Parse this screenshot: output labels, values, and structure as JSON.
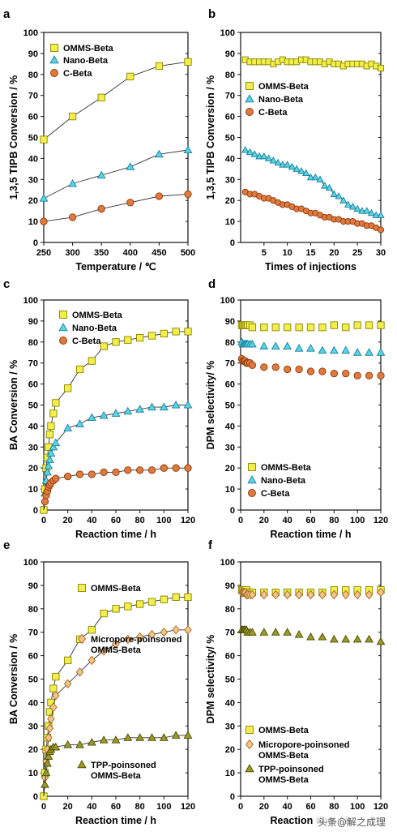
{
  "watermark": "头条@解之成理",
  "colors": {
    "ommS": "#f2ee4a",
    "ommSEdge": "#8a8600",
    "nano": "#58d4e6",
    "nanoEdge": "#1a7f9a",
    "cbeta": "#e07a3c",
    "cbetaEdge": "#8a3a10",
    "micro": "#f4c48a",
    "microEdge": "#a06a20",
    "tpp": "#9a9a2a",
    "tppEdge": "#4a4a00",
    "line": "#333333"
  },
  "chart_data": [
    {
      "panel": "a",
      "type": "line",
      "xlabel": "Temperature / ℃",
      "ylabel": "1,3,5 TIPB Conversion / %",
      "xlim": [
        250,
        500
      ],
      "ylim": [
        0,
        100
      ],
      "xticks": [
        250,
        300,
        350,
        400,
        450,
        500
      ],
      "yticks": [
        0,
        10,
        20,
        30,
        40,
        50,
        60,
        70,
        80,
        90,
        100
      ],
      "legend": "top-left",
      "series": [
        {
          "name": "OMMS-Beta",
          "marker": "square",
          "x": [
            250,
            300,
            350,
            400,
            450,
            500
          ],
          "y": [
            49,
            60,
            69,
            79,
            84,
            86
          ]
        },
        {
          "name": "Nano-Beta",
          "marker": "triangle",
          "x": [
            250,
            300,
            350,
            400,
            450,
            500
          ],
          "y": [
            21,
            28,
            32,
            36,
            42,
            44
          ]
        },
        {
          "name": "C-Beta",
          "marker": "circle",
          "x": [
            250,
            300,
            350,
            400,
            450,
            500
          ],
          "y": [
            10,
            12,
            16,
            19,
            22,
            23
          ]
        }
      ]
    },
    {
      "panel": "b",
      "type": "line",
      "xlabel": "Times of injections",
      "ylabel": "1,3,5 TIPB Conversion / %",
      "xlim": [
        0,
        30
      ],
      "ylim": [
        0,
        100
      ],
      "xticks": [
        5,
        10,
        15,
        20,
        25,
        30
      ],
      "yticks": [
        0,
        10,
        20,
        30,
        40,
        50,
        60,
        70,
        80,
        90,
        100
      ],
      "legend": "top-left",
      "series": [
        {
          "name": "OMMS-Beta",
          "marker": "square",
          "x": [
            1,
            2,
            3,
            4,
            5,
            6,
            7,
            8,
            9,
            10,
            11,
            12,
            13,
            14,
            15,
            16,
            17,
            18,
            19,
            20,
            21,
            22,
            23,
            24,
            25,
            26,
            27,
            28,
            29,
            30
          ],
          "y": [
            87,
            86,
            86,
            86,
            86,
            86,
            85,
            86,
            87,
            86,
            86,
            86,
            87,
            87,
            86,
            86,
            86,
            85,
            86,
            85,
            85,
            84,
            85,
            85,
            85,
            85,
            84,
            85,
            84,
            83
          ]
        },
        {
          "name": "Nano-Beta",
          "marker": "triangle",
          "x": [
            1,
            2,
            3,
            4,
            5,
            6,
            7,
            8,
            9,
            10,
            11,
            12,
            13,
            14,
            15,
            16,
            17,
            18,
            19,
            20,
            21,
            22,
            23,
            24,
            25,
            26,
            27,
            28,
            29,
            30
          ],
          "y": [
            44,
            43,
            42,
            41,
            41,
            40,
            39,
            38,
            37,
            37,
            36,
            35,
            34,
            33,
            31,
            31,
            30,
            27,
            26,
            23,
            22,
            20,
            18,
            17,
            16,
            15,
            15,
            14,
            13,
            13
          ]
        },
        {
          "name": "C-Beta",
          "marker": "circle",
          "x": [
            1,
            2,
            3,
            4,
            5,
            6,
            7,
            8,
            9,
            10,
            11,
            12,
            13,
            14,
            15,
            16,
            17,
            18,
            19,
            20,
            21,
            22,
            23,
            24,
            25,
            26,
            27,
            28,
            29,
            30
          ],
          "y": [
            24,
            23,
            23,
            22,
            21,
            21,
            20,
            19,
            18,
            18,
            17,
            16,
            16,
            15,
            14,
            14,
            13,
            12,
            12,
            11,
            11,
            10,
            10,
            10,
            9,
            9,
            8,
            8,
            7,
            6
          ]
        }
      ]
    },
    {
      "panel": "c",
      "type": "line",
      "xlabel": "Reaction time / h",
      "ylabel": "BA Conversion / %",
      "xlim": [
        0,
        120
      ],
      "ylim": [
        0,
        100
      ],
      "xticks": [
        0,
        20,
        40,
        60,
        80,
        100,
        120
      ],
      "yticks": [
        0,
        10,
        20,
        30,
        40,
        50,
        60,
        70,
        80,
        90,
        100
      ],
      "legend": "top-center",
      "series": [
        {
          "name": "OMMS-Beta",
          "marker": "square",
          "x": [
            0,
            1,
            2,
            3,
            4,
            5,
            6,
            8,
            10,
            20,
            30,
            40,
            50,
            60,
            70,
            80,
            90,
            100,
            110,
            120
          ],
          "y": [
            0,
            10,
            20,
            25,
            30,
            36,
            40,
            46,
            51,
            58,
            67,
            71,
            78,
            80,
            81,
            82,
            83,
            84,
            85,
            85
          ]
        },
        {
          "name": "Nano-Beta",
          "marker": "triangle",
          "x": [
            0,
            1,
            2,
            3,
            4,
            5,
            6,
            8,
            10,
            20,
            30,
            40,
            50,
            60,
            70,
            80,
            90,
            100,
            110,
            120
          ],
          "y": [
            0,
            8,
            14,
            18,
            21,
            24,
            27,
            30,
            32,
            39,
            41,
            44,
            45,
            46,
            47,
            48,
            49,
            49,
            50,
            50
          ]
        },
        {
          "name": "C-Beta",
          "marker": "circle",
          "x": [
            0,
            1,
            2,
            3,
            4,
            5,
            6,
            8,
            10,
            20,
            30,
            40,
            50,
            60,
            70,
            80,
            90,
            100,
            110,
            120
          ],
          "y": [
            0,
            4,
            7,
            9,
            11,
            12,
            13,
            14,
            15,
            16,
            17,
            17,
            18,
            18,
            19,
            19,
            19,
            20,
            20,
            20
          ]
        }
      ]
    },
    {
      "panel": "d",
      "type": "scatter",
      "xlabel": "Reaction time / h",
      "ylabel": "DPM selectivity/ %",
      "xlim": [
        0,
        120
      ],
      "ylim": [
        0,
        100
      ],
      "xticks": [
        0,
        20,
        40,
        60,
        80,
        100,
        120
      ],
      "yticks": [
        0,
        10,
        20,
        30,
        40,
        50,
        60,
        70,
        80,
        90,
        100
      ],
      "legend": "bottom-center",
      "series": [
        {
          "name": "OMMS-Beta",
          "marker": "square",
          "x": [
            1,
            2,
            3,
            4,
            5,
            6,
            8,
            10,
            20,
            30,
            40,
            50,
            60,
            70,
            80,
            90,
            100,
            110,
            120
          ],
          "y": [
            88,
            88,
            88,
            88,
            88,
            88,
            88,
            87,
            87,
            87,
            87,
            87,
            87,
            87,
            88,
            87,
            88,
            88,
            88
          ]
        },
        {
          "name": "Nano-Beta",
          "marker": "triangle",
          "x": [
            1,
            2,
            3,
            4,
            5,
            6,
            8,
            10,
            20,
            30,
            40,
            50,
            60,
            70,
            80,
            90,
            100,
            110,
            120
          ],
          "y": [
            80,
            79,
            79,
            79,
            79,
            79,
            79,
            79,
            78,
            78,
            78,
            77,
            77,
            76,
            76,
            76,
            75,
            75,
            75
          ]
        },
        {
          "name": "C-Beta",
          "marker": "circle",
          "x": [
            1,
            2,
            3,
            4,
            5,
            6,
            8,
            10,
            20,
            30,
            40,
            50,
            60,
            70,
            80,
            90,
            100,
            110,
            120
          ],
          "y": [
            72,
            71,
            71,
            71,
            70,
            70,
            70,
            69,
            68,
            68,
            67,
            67,
            66,
            66,
            65,
            65,
            64,
            64,
            64
          ]
        }
      ]
    },
    {
      "panel": "e",
      "type": "line",
      "xlabel": "Reaction time / h",
      "ylabel": "BA Conversion / %",
      "xlim": [
        0,
        120
      ],
      "ylim": [
        0,
        100
      ],
      "xticks": [
        0,
        20,
        40,
        60,
        80,
        100,
        120
      ],
      "yticks": [
        0,
        10,
        20,
        30,
        40,
        50,
        60,
        70,
        80,
        90,
        100
      ],
      "legend": "inline-labels",
      "series": [
        {
          "name": "OMMS-Beta",
          "marker": "square",
          "x": [
            0,
            1,
            2,
            3,
            4,
            5,
            6,
            8,
            10,
            20,
            30,
            40,
            50,
            60,
            70,
            80,
            90,
            100,
            110,
            120
          ],
          "y": [
            0,
            10,
            20,
            25,
            30,
            36,
            40,
            46,
            51,
            58,
            67,
            71,
            78,
            80,
            81,
            82,
            83,
            84,
            85,
            85
          ]
        },
        {
          "name": "Micropore-poinsoned OMMS-Beta",
          "marker": "diamond",
          "x": [
            0,
            1,
            2,
            3,
            4,
            5,
            6,
            8,
            10,
            20,
            30,
            40,
            50,
            60,
            70,
            80,
            90,
            100,
            110,
            120
          ],
          "y": [
            0,
            8,
            15,
            20,
            25,
            29,
            33,
            38,
            43,
            48,
            53,
            58,
            62,
            65,
            67,
            68,
            69,
            70,
            71,
            71
          ]
        },
        {
          "name": "TPP-poinsoned OMMS-Beta",
          "marker": "triangle",
          "x": [
            0,
            1,
            2,
            3,
            4,
            5,
            6,
            8,
            10,
            20,
            30,
            40,
            50,
            60,
            70,
            80,
            90,
            100,
            110,
            120
          ],
          "y": [
            0,
            5,
            10,
            14,
            17,
            19,
            20,
            21,
            21,
            22,
            22,
            23,
            24,
            24,
            25,
            25,
            25,
            25,
            26,
            26
          ]
        }
      ]
    },
    {
      "panel": "f",
      "type": "scatter",
      "xlabel": "Reaction time / h",
      "ylabel": "DPM selectivity/ %",
      "xlim": [
        0,
        120
      ],
      "ylim": [
        0,
        100
      ],
      "xticks": [
        0,
        20,
        40,
        60,
        80,
        100,
        120
      ],
      "yticks": [
        0,
        10,
        20,
        30,
        40,
        50,
        60,
        70,
        80,
        90,
        100
      ],
      "legend": "bottom-left",
      "series": [
        {
          "name": "OMMS-Beta",
          "marker": "square",
          "x": [
            1,
            2,
            3,
            4,
            5,
            6,
            8,
            10,
            20,
            30,
            40,
            50,
            60,
            70,
            80,
            90,
            100,
            110,
            120
          ],
          "y": [
            88,
            88,
            88,
            88,
            88,
            87,
            87,
            87,
            87,
            87,
            87,
            87,
            87,
            87,
            88,
            88,
            88,
            88,
            88
          ]
        },
        {
          "name": "Micropore-poinsoned OMMS-Beta",
          "marker": "diamond",
          "x": [
            1,
            2,
            3,
            4,
            5,
            6,
            8,
            10,
            20,
            30,
            40,
            50,
            60,
            70,
            80,
            90,
            100,
            110,
            120
          ],
          "y": [
            87,
            87,
            87,
            87,
            86,
            86,
            86,
            86,
            86,
            86,
            86,
            86,
            86,
            86,
            86,
            86,
            86,
            86,
            87
          ]
        },
        {
          "name": "TPP-poinsoned OMMS-Beta",
          "marker": "triangle",
          "x": [
            1,
            2,
            3,
            4,
            5,
            6,
            8,
            10,
            20,
            30,
            40,
            50,
            60,
            70,
            80,
            90,
            100,
            110,
            120
          ],
          "y": [
            71,
            71,
            71,
            71,
            71,
            70,
            70,
            70,
            70,
            70,
            70,
            69,
            68,
            68,
            67,
            67,
            67,
            67,
            66
          ]
        }
      ]
    }
  ]
}
